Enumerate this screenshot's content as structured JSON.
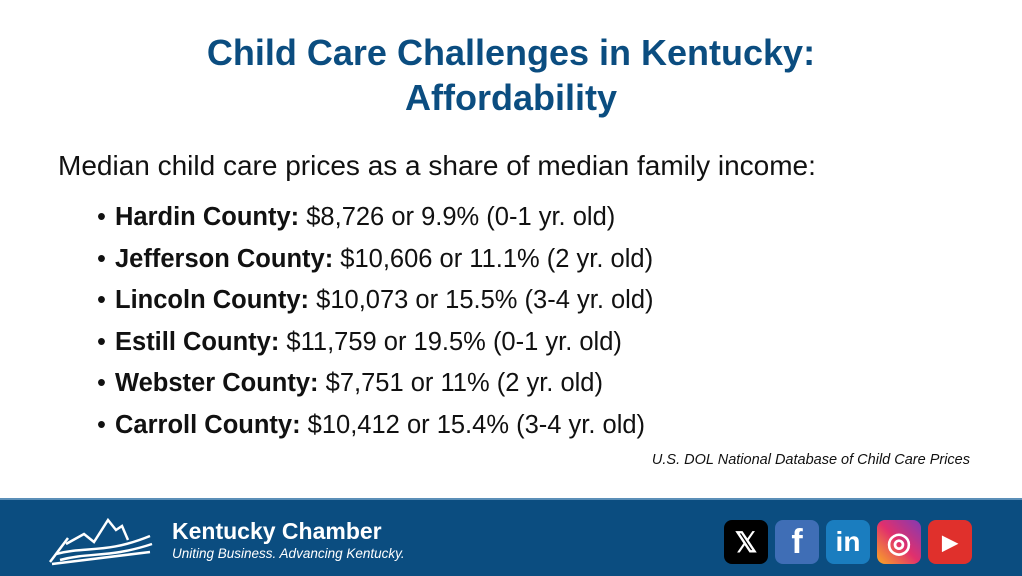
{
  "title": {
    "line1": "Child Care Challenges in Kentucky:",
    "line2": "Affordability"
  },
  "intro": "Median child care prices as a share of median family income:",
  "items": [
    {
      "county": "Hardin County:",
      "detail": " $8,726 or 9.9% (0-1 yr. old)"
    },
    {
      "county": "Jefferson County:",
      "detail": " $10,606 or 11.1% (2 yr. old)"
    },
    {
      "county": "Lincoln County:",
      "detail": " $10,073 or 15.5% (3-4 yr. old)"
    },
    {
      "county": "Estill County:",
      "detail": " $11,759 or 19.5% (0-1 yr. old)"
    },
    {
      "county": "Webster County:",
      "detail": " $7,751 or 11% (2 yr. old)"
    },
    {
      "county": "Carroll County:",
      "detail": " $10,412 or 15.4% (3-4 yr. old)"
    }
  ],
  "source": "U.S. DOL National Database of Child Care Prices",
  "footer": {
    "brand": "Kentucky Chamber",
    "tagline": "Uniting Business. Advancing Kentucky.",
    "social": [
      {
        "icon": "x-icon",
        "glyph": "𝕏",
        "color": "#000000"
      },
      {
        "icon": "facebook-icon",
        "glyph": "f",
        "color": "#3f6eb6"
      },
      {
        "icon": "linkedin-icon",
        "glyph": "in",
        "color": "#1a7dbf"
      },
      {
        "icon": "instagram-icon",
        "glyph": "◎",
        "color": "#d62976"
      },
      {
        "icon": "youtube-icon",
        "glyph": "▶",
        "color": "#e0302c"
      }
    ]
  }
}
